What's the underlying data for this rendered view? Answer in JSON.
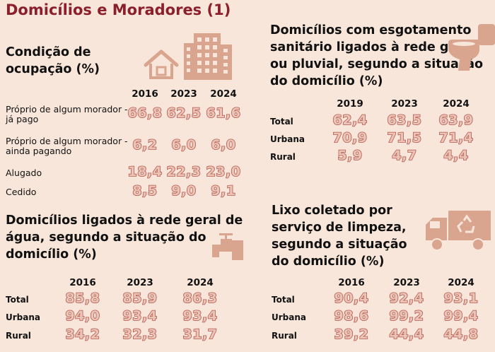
{
  "title": "Domicílios e Moradores (1)",
  "chart_data": [
    {
      "type": "table",
      "title": "Condição de ocupação (%)",
      "columns": [
        "2016",
        "2023",
        "2024"
      ],
      "rows": [
        {
          "label": "Próprio de algum morador - já pago",
          "values": [
            "66,8",
            "62,5",
            "61,6"
          ]
        },
        {
          "label": "Próprio de algum morador - ainda pagando",
          "values": [
            "6,2",
            "6,0",
            "6,0"
          ]
        },
        {
          "label": "Alugado",
          "values": [
            "18,4",
            "22,3",
            "23,0"
          ]
        },
        {
          "label": "Cedido",
          "values": [
            "8,5",
            "9,0",
            "9,1"
          ]
        }
      ],
      "icons": [
        "house-icon",
        "buildings-icon"
      ]
    },
    {
      "type": "table",
      "title": "Domicílios com esgotamento sanitário ligados à rede geral ou pluvial, segundo a situação do domicílio (%)",
      "columns": [
        "2019",
        "2023",
        "2024"
      ],
      "rows": [
        {
          "label": "Total",
          "values": [
            "62,4",
            "63,5",
            "63,9"
          ]
        },
        {
          "label": "Urbana",
          "values": [
            "70,9",
            "71,5",
            "71,4"
          ]
        },
        {
          "label": "Rural",
          "values": [
            "5,9",
            "4,7",
            "4,4"
          ]
        }
      ],
      "icons": [
        "toilet-icon"
      ]
    },
    {
      "type": "table",
      "title": "Domicílios ligados à rede geral de água, segundo a situação do domicílio (%)",
      "columns": [
        "2016",
        "2023",
        "2024"
      ],
      "rows": [
        {
          "label": "Total",
          "values": [
            "85,8",
            "85,9",
            "86,3"
          ]
        },
        {
          "label": "Urbana",
          "values": [
            "94,0",
            "93,4",
            "93,4"
          ]
        },
        {
          "label": "Rural",
          "values": [
            "34,2",
            "32,3",
            "31,7"
          ]
        }
      ],
      "icons": [
        "faucet-icon"
      ]
    },
    {
      "type": "table",
      "title": "Lixo coletado por serviço de limpeza, segundo a situação do domicílio (%)",
      "columns": [
        "2016",
        "2023",
        "2024"
      ],
      "rows": [
        {
          "label": "Total",
          "values": [
            "90,4",
            "92,4",
            "93,1"
          ]
        },
        {
          "label": "Urbana",
          "values": [
            "98,6",
            "99,2",
            "99,4"
          ]
        },
        {
          "label": "Rural",
          "values": [
            "39,2",
            "44,4",
            "44,8"
          ]
        }
      ],
      "icons": [
        "recycling-truck-icon"
      ]
    }
  ],
  "colors": {
    "background": "#f8e6da",
    "title": "#8b1f2b",
    "value_fill": "#e9c5b8",
    "value_stroke": "#b8574e",
    "icon": "#d9a58f"
  }
}
